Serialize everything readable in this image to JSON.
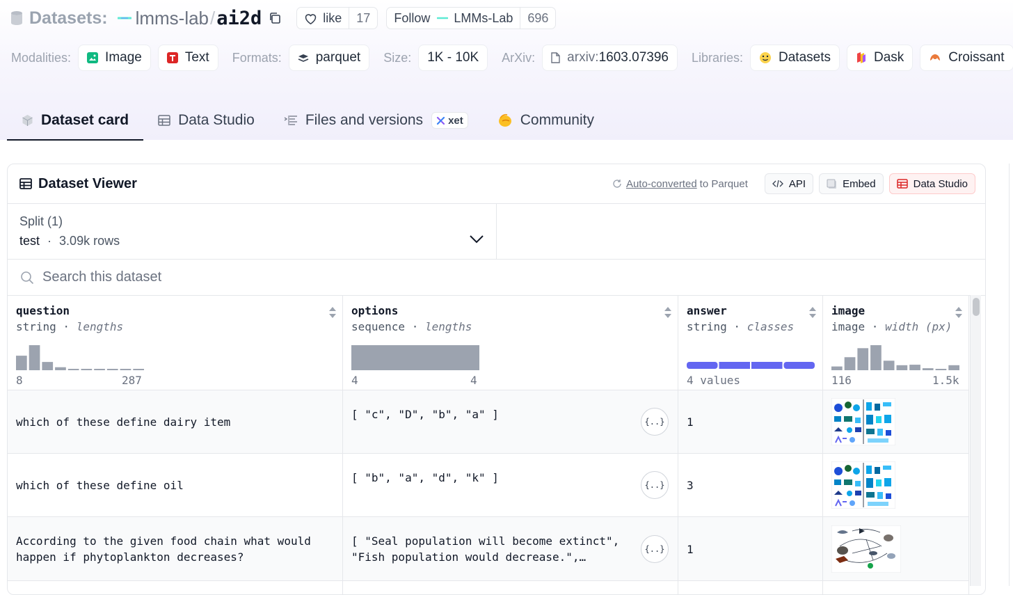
{
  "header": {
    "section": "Datasets:",
    "owner": "lmms-lab",
    "slash": "/",
    "repo": "ai2d",
    "like_label": "like",
    "like_count": "17",
    "follow_label": "Follow",
    "org_name": "LMMs-Lab",
    "follow_count": "696"
  },
  "meta": {
    "modalities_label": "Modalities:",
    "modalities": [
      "Image",
      "Text"
    ],
    "formats_label": "Formats:",
    "format": "parquet",
    "size_label": "Size:",
    "size": "1K - 10K",
    "arxiv_label": "ArXiv:",
    "arxiv_prefix": "arxiv:",
    "arxiv_id": "1603.07396",
    "libraries_label": "Libraries:",
    "libraries": [
      "Datasets",
      "Dask",
      "Croissant"
    ]
  },
  "tabs": [
    {
      "label": "Dataset card",
      "active": true
    },
    {
      "label": "Data Studio"
    },
    {
      "label": "Files and versions",
      "badge": "xet"
    },
    {
      "label": "Community"
    }
  ],
  "viewer": {
    "title": "Dataset Viewer",
    "autoconvert_link": "Auto-converted",
    "autoconvert_rest": "to Parquet",
    "api_label": "API",
    "embed_label": "Embed",
    "studio_label": "Data Studio",
    "split_label": "Split (1)",
    "split_name": "test",
    "split_sep": "·",
    "split_rows": "3.09k rows",
    "search_placeholder": "Search this dataset"
  },
  "columns": [
    {
      "name": "question",
      "type": "string",
      "stat": "lengths",
      "min": "8",
      "max": "287",
      "hist": [
        0.58,
        1.0,
        0.33,
        0.12,
        0.04,
        0.03,
        0.03,
        0.03,
        0.03,
        0.03
      ]
    },
    {
      "name": "options",
      "type": "sequence",
      "stat": "lengths",
      "min": "4",
      "max": "4",
      "hist": [
        1.0
      ]
    },
    {
      "name": "answer",
      "type": "string",
      "stat": "classes",
      "summary": "4 values",
      "classes": 4
    },
    {
      "name": "image",
      "type": "image",
      "stat": "width (px)",
      "min": "116",
      "max": "1.5k",
      "hist": [
        0.15,
        0.52,
        0.88,
        1.0,
        0.38,
        0.2,
        0.22,
        0.08,
        0.05,
        0.2
      ]
    }
  ],
  "rows": [
    {
      "question": "which of these define dairy item",
      "options": "[ \"c\", \"D\", \"b\", \"a\" ]",
      "answer": "1"
    },
    {
      "question": "which of these define oil",
      "options": "[ \"b\", \"a\", \"d\", \"k\" ]",
      "answer": "3"
    },
    {
      "question_l1": "According to the given food chain what would",
      "question_l2": "happen if phytoplankton decreases?",
      "options_l1": "[ \"Seal population will become extinct\",",
      "options_l2": "\"Fish population would decrease.\",…",
      "answer": "1"
    }
  ],
  "colors": {
    "accent": "#6366f1",
    "hist": "#9ca3af",
    "tab_active": "#111827"
  }
}
